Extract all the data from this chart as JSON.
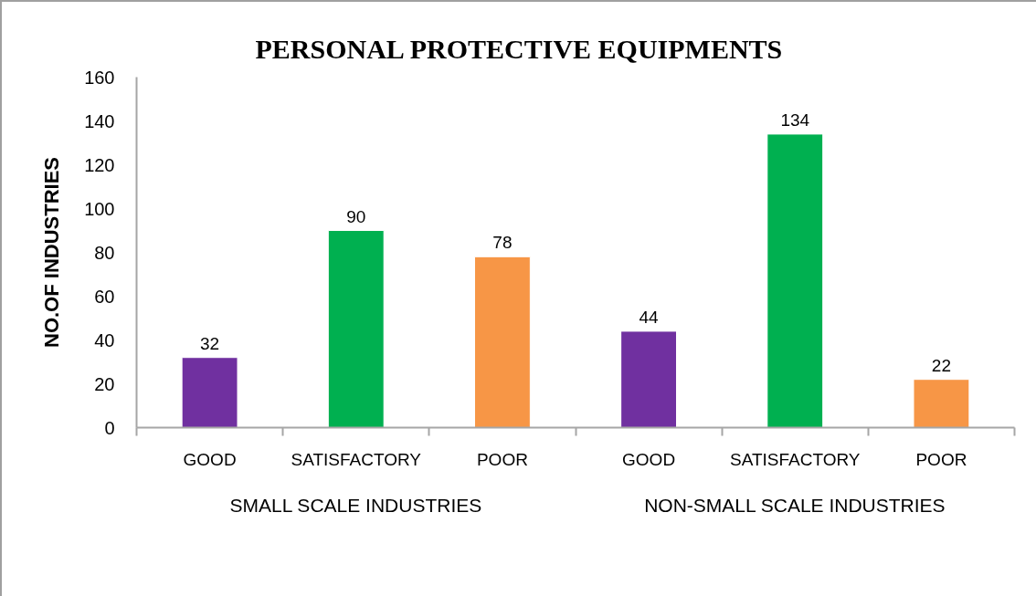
{
  "chart_data": {
    "type": "bar",
    "title": "PERSONAL PROTECTIVE  EQUIPMENTS",
    "ylabel": "NO.OF INDUSTRIES",
    "categories": [
      "GOOD",
      "SATISFACTORY",
      "POOR",
      "GOOD",
      "SATISFACTORY",
      "POOR"
    ],
    "values": [
      32,
      90,
      78,
      44,
      134,
      22
    ],
    "colors": [
      "#7030a0",
      "#00b050",
      "#f79646",
      "#7030a0",
      "#00b050",
      "#f79646"
    ],
    "ylim": [
      0,
      160
    ],
    "yticks": [
      0,
      20,
      40,
      60,
      80,
      100,
      120,
      140,
      160
    ],
    "data_labels": true,
    "annotations": [
      "SMALL SCALE INDUSTRIES",
      "NON-SMALL SCALE INDUSTRIES"
    ]
  }
}
